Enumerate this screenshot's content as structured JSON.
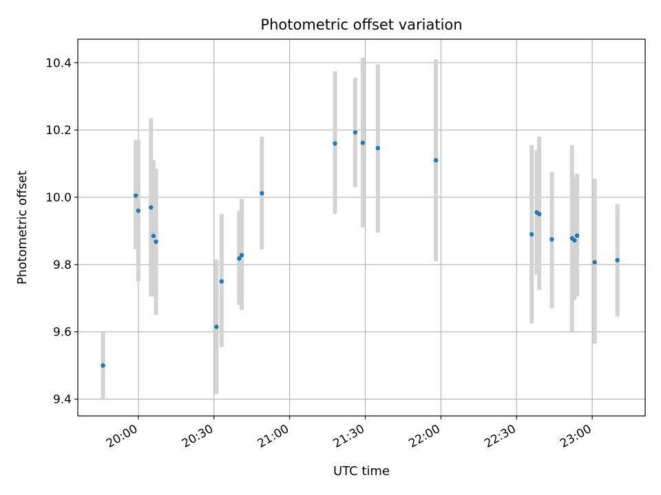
{
  "chart_data": {
    "type": "scatter",
    "title": "Photometric offset variation",
    "xlabel": "UTC time",
    "ylabel": "Photometric offset",
    "x_axis_kind": "time-of-day",
    "xlim": [
      "19:36",
      "23:21"
    ],
    "ylim": [
      9.35,
      10.47
    ],
    "grid": true,
    "x_ticks": [
      "20:00",
      "20:30",
      "21:00",
      "21:30",
      "22:00",
      "22:30",
      "23:00"
    ],
    "y_ticks": [
      "9.4",
      "9.6",
      "9.8",
      "10.0",
      "10.2",
      "10.4"
    ],
    "colors": {
      "point": "#1f77b4",
      "errorbar": "#d3d3d3",
      "grid": "#b0b0b0",
      "axes": "#000000"
    },
    "points": [
      {
        "x": "19:46",
        "y": 9.5,
        "yerr_low": 9.4,
        "yerr_high": 9.6
      },
      {
        "x": "19:59",
        "y": 10.005,
        "yerr_low": 9.845,
        "yerr_high": 10.17
      },
      {
        "x": "20:00",
        "y": 9.96,
        "yerr_low": 9.75,
        "yerr_high": 10.17
      },
      {
        "x": "20:05",
        "y": 9.97,
        "yerr_low": 9.705,
        "yerr_high": 10.235
      },
      {
        "x": "20:06",
        "y": 9.885,
        "yerr_low": 9.705,
        "yerr_high": 10.11
      },
      {
        "x": "20:07",
        "y": 9.868,
        "yerr_low": 9.65,
        "yerr_high": 10.085
      },
      {
        "x": "20:31",
        "y": 9.615,
        "yerr_low": 9.415,
        "yerr_high": 9.815
      },
      {
        "x": "20:33",
        "y": 9.75,
        "yerr_low": 9.555,
        "yerr_high": 9.95
      },
      {
        "x": "20:40",
        "y": 9.818,
        "yerr_low": 9.68,
        "yerr_high": 9.96
      },
      {
        "x": "20:41",
        "y": 9.828,
        "yerr_low": 9.665,
        "yerr_high": 9.995
      },
      {
        "x": "20:49",
        "y": 10.012,
        "yerr_low": 9.845,
        "yerr_high": 10.18
      },
      {
        "x": "21:18",
        "y": 10.16,
        "yerr_low": 9.95,
        "yerr_high": 10.375
      },
      {
        "x": "21:26",
        "y": 10.193,
        "yerr_low": 10.03,
        "yerr_high": 10.355
      },
      {
        "x": "21:29",
        "y": 10.162,
        "yerr_low": 9.91,
        "yerr_high": 10.415
      },
      {
        "x": "21:35",
        "y": 10.146,
        "yerr_low": 9.895,
        "yerr_high": 10.395
      },
      {
        "x": "21:58",
        "y": 10.11,
        "yerr_low": 9.81,
        "yerr_high": 10.41
      },
      {
        "x": "22:36",
        "y": 9.89,
        "yerr_low": 9.625,
        "yerr_high": 10.155
      },
      {
        "x": "22:38",
        "y": 9.955,
        "yerr_low": 9.77,
        "yerr_high": 10.14
      },
      {
        "x": "22:39",
        "y": 9.95,
        "yerr_low": 9.725,
        "yerr_high": 10.18
      },
      {
        "x": "22:44",
        "y": 9.875,
        "yerr_low": 9.67,
        "yerr_high": 10.075
      },
      {
        "x": "22:52",
        "y": 9.878,
        "yerr_low": 9.6,
        "yerr_high": 10.155
      },
      {
        "x": "22:53",
        "y": 9.872,
        "yerr_low": 9.695,
        "yerr_high": 10.06
      },
      {
        "x": "22:54",
        "y": 9.886,
        "yerr_low": 9.705,
        "yerr_high": 10.07
      },
      {
        "x": "23:01",
        "y": 9.807,
        "yerr_low": 9.565,
        "yerr_high": 10.055
      },
      {
        "x": "23:10",
        "y": 9.813,
        "yerr_low": 9.645,
        "yerr_high": 9.98
      }
    ]
  }
}
